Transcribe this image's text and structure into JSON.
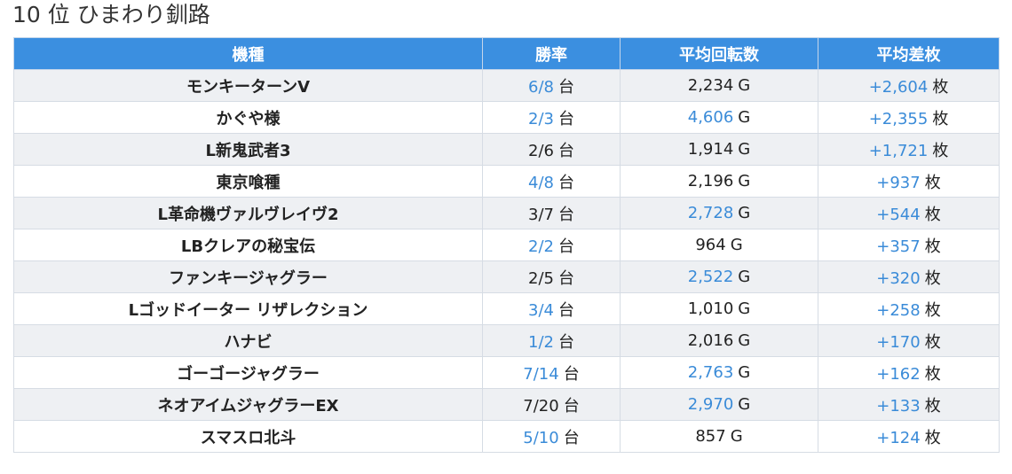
{
  "page": {
    "title": "10 位 ひまわり釧路"
  },
  "table": {
    "headers": [
      "機種",
      "勝率",
      "平均回転数",
      "平均差枚"
    ],
    "units": {
      "win": "台",
      "spin": "G",
      "diff": "枚"
    },
    "rows": [
      {
        "name": "モンキーターンV",
        "win": "6/8",
        "win_link": true,
        "spin": "2,234",
        "spin_link": false,
        "diff": "+2,604",
        "diff_link": true
      },
      {
        "name": "かぐや様",
        "win": "2/3",
        "win_link": true,
        "spin": "4,606",
        "spin_link": true,
        "diff": "+2,355",
        "diff_link": true
      },
      {
        "name": "L新鬼武者3",
        "win": "2/6",
        "win_link": false,
        "spin": "1,914",
        "spin_link": false,
        "diff": "+1,721",
        "diff_link": true
      },
      {
        "name": "東京喰種",
        "win": "4/8",
        "win_link": true,
        "spin": "2,196",
        "spin_link": false,
        "diff": "+937",
        "diff_link": true
      },
      {
        "name": "L革命機ヴァルヴレイヴ2",
        "win": "3/7",
        "win_link": false,
        "spin": "2,728",
        "spin_link": true,
        "diff": "+544",
        "diff_link": true
      },
      {
        "name": "LBクレアの秘宝伝",
        "win": "2/2",
        "win_link": true,
        "spin": "964",
        "spin_link": false,
        "diff": "+357",
        "diff_link": true
      },
      {
        "name": "ファンキージャグラー",
        "win": "2/5",
        "win_link": false,
        "spin": "2,522",
        "spin_link": true,
        "diff": "+320",
        "diff_link": true
      },
      {
        "name": "Lゴッドイーター リザレクション",
        "win": "3/4",
        "win_link": true,
        "spin": "1,010",
        "spin_link": false,
        "diff": "+258",
        "diff_link": true
      },
      {
        "name": "ハナビ",
        "win": "1/2",
        "win_link": true,
        "spin": "2,016",
        "spin_link": false,
        "diff": "+170",
        "diff_link": true
      },
      {
        "name": "ゴーゴージャグラー",
        "win": "7/14",
        "win_link": true,
        "spin": "2,763",
        "spin_link": true,
        "diff": "+162",
        "diff_link": true
      },
      {
        "name": "ネオアイムジャグラーEX",
        "win": "7/20",
        "win_link": false,
        "spin": "2,970",
        "spin_link": true,
        "diff": "+133",
        "diff_link": true
      },
      {
        "name": "スマスロ北斗",
        "win": "5/10",
        "win_link": true,
        "spin": "857",
        "spin_link": false,
        "diff": "+124",
        "diff_link": true
      }
    ]
  }
}
